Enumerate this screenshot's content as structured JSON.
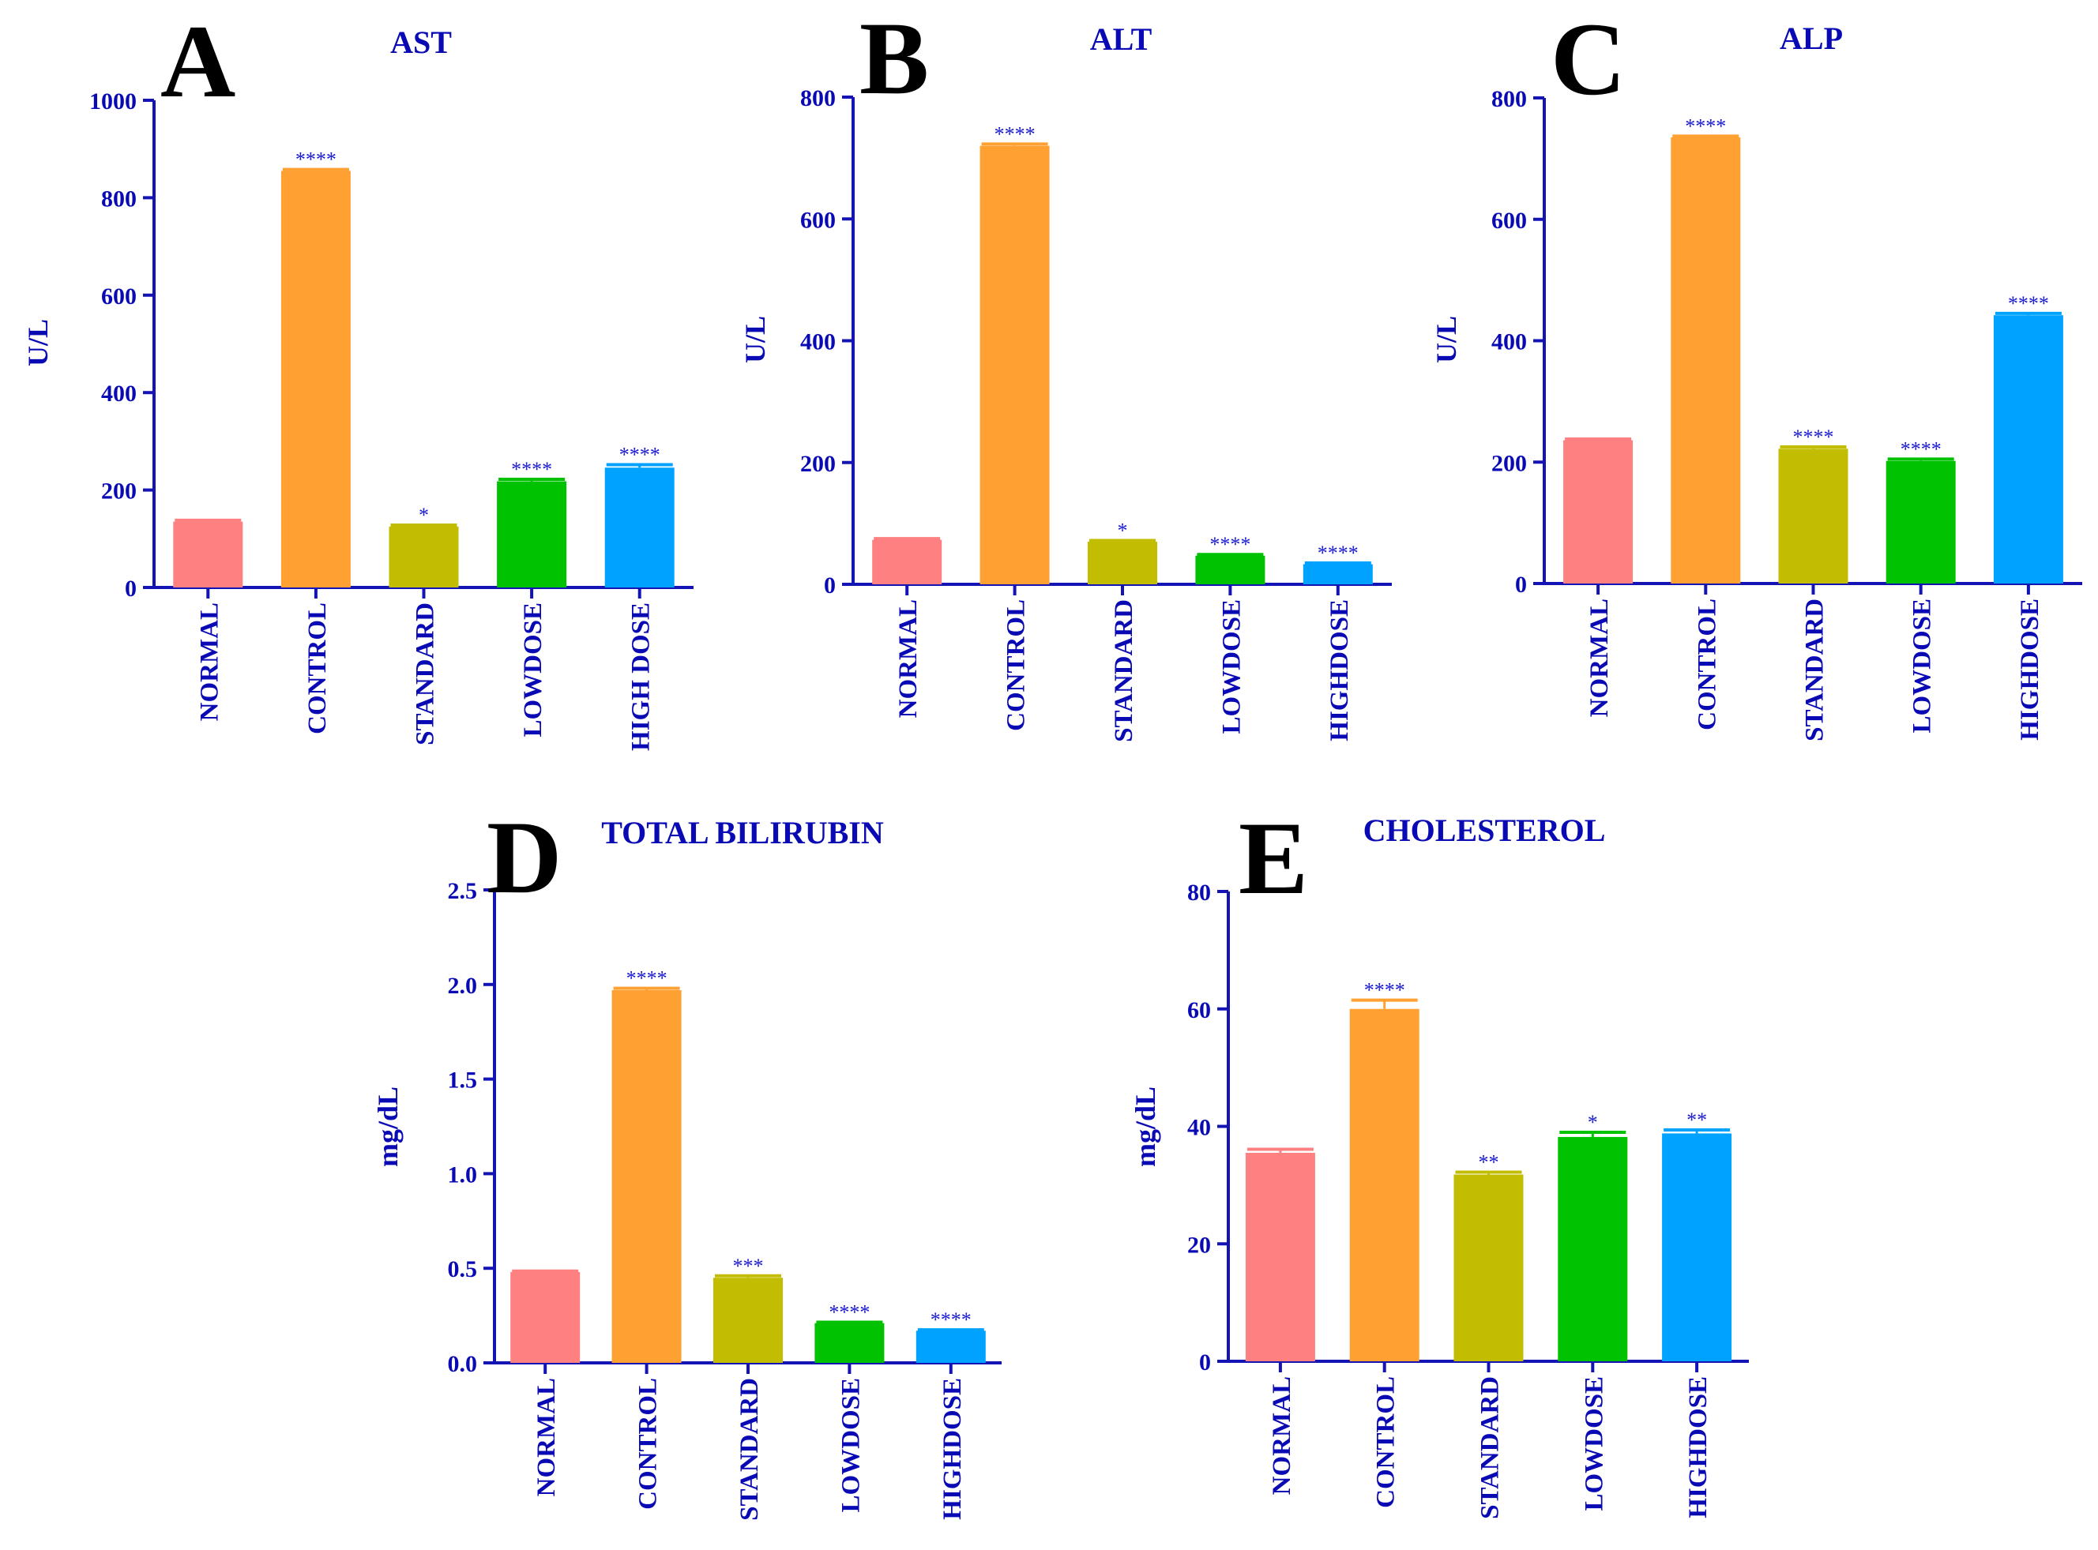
{
  "colors": {
    "axis": "#1414b4",
    "text": "#0a0ab4",
    "letter": "#000000",
    "bars": [
      "#fe8080",
      "#ffa033",
      "#c2bd00",
      "#00c200",
      "#00a2ff"
    ]
  },
  "chart_data": [
    {
      "type": "bar",
      "panel": "A",
      "title": "AST",
      "ylabel": "U/L",
      "ylim": [
        0,
        1000
      ],
      "yticks": [
        0,
        200,
        400,
        600,
        800,
        1000
      ],
      "tick_labels": [
        "0",
        "200",
        "400",
        "600",
        "800",
        "1000"
      ],
      "categories": [
        "NORMAL",
        "CONTROL",
        "STANDARD",
        "LOWDOSE",
        "HIGH DOSE"
      ],
      "values": [
        135,
        855,
        125,
        218,
        246
      ],
      "errors": [
        3,
        3,
        3,
        4,
        6
      ],
      "significance": [
        "",
        "****",
        "*",
        "****",
        "****"
      ]
    },
    {
      "type": "bar",
      "panel": "B",
      "title": "ALT",
      "ylabel": "U/L",
      "ylim": [
        0,
        800
      ],
      "yticks": [
        0,
        200,
        400,
        600,
        800
      ],
      "tick_labels": [
        "0",
        "200",
        "400",
        "600",
        "800"
      ],
      "categories": [
        "NORMAL",
        "CONTROL",
        "STANDARD",
        "LOWDOSE",
        "HIGHDOSE"
      ],
      "values": [
        73,
        720,
        70,
        47,
        33
      ],
      "errors": [
        2,
        3,
        2,
        2,
        2
      ],
      "significance": [
        "",
        "****",
        "*",
        "****",
        "****"
      ]
    },
    {
      "type": "bar",
      "panel": "C",
      "title": "ALP",
      "ylabel": "U/L",
      "ylim": [
        0,
        800
      ],
      "yticks": [
        0,
        200,
        400,
        600,
        800
      ],
      "tick_labels": [
        "0",
        "200",
        "400",
        "600",
        "800"
      ],
      "categories": [
        "NORMAL",
        "CONTROL",
        "STANDARD",
        "LOWDOSE",
        "HIGHDOSE"
      ],
      "values": [
        236,
        735,
        222,
        202,
        442
      ],
      "errors": [
        2,
        2,
        3,
        3,
        3
      ],
      "significance": [
        "",
        "****",
        "****",
        "****",
        "****"
      ]
    },
    {
      "type": "bar",
      "panel": "D",
      "title": "TOTAL BILIRUBIN",
      "ylabel": "mg/dL",
      "ylim": [
        0,
        2.5
      ],
      "yticks": [
        0,
        0.5,
        1.0,
        1.5,
        2.0,
        2.5
      ],
      "tick_labels": [
        "0.0",
        "0.5",
        "1.0",
        "1.5",
        "2.0",
        "2.5"
      ],
      "categories": [
        "NORMAL",
        "CONTROL",
        "STANDARD",
        "LOWDOSE",
        "HIGHDOSE"
      ],
      "values": [
        0.48,
        1.97,
        0.45,
        0.21,
        0.17
      ],
      "errors": [
        0.005,
        0.01,
        0.01,
        0.005,
        0.005
      ],
      "significance": [
        "",
        "****",
        "***",
        "****",
        "****"
      ]
    },
    {
      "type": "bar",
      "panel": "E",
      "title": "CHOLESTEROL",
      "ylabel": "mg/dL",
      "ylim": [
        0,
        80
      ],
      "yticks": [
        0,
        20,
        40,
        60,
        80
      ],
      "tick_labels": [
        "0",
        "20",
        "40",
        "60",
        "80"
      ],
      "categories": [
        "NORMAL",
        "CONTROL",
        "STANDARD",
        "LOWDOSE",
        "HIGHDOSE"
      ],
      "values": [
        35.5,
        60,
        31.8,
        38.2,
        38.8
      ],
      "errors": [
        0.6,
        1.5,
        0.4,
        0.8,
        0.6
      ],
      "significance": [
        "",
        "****",
        "**",
        "*",
        "**"
      ]
    }
  ]
}
